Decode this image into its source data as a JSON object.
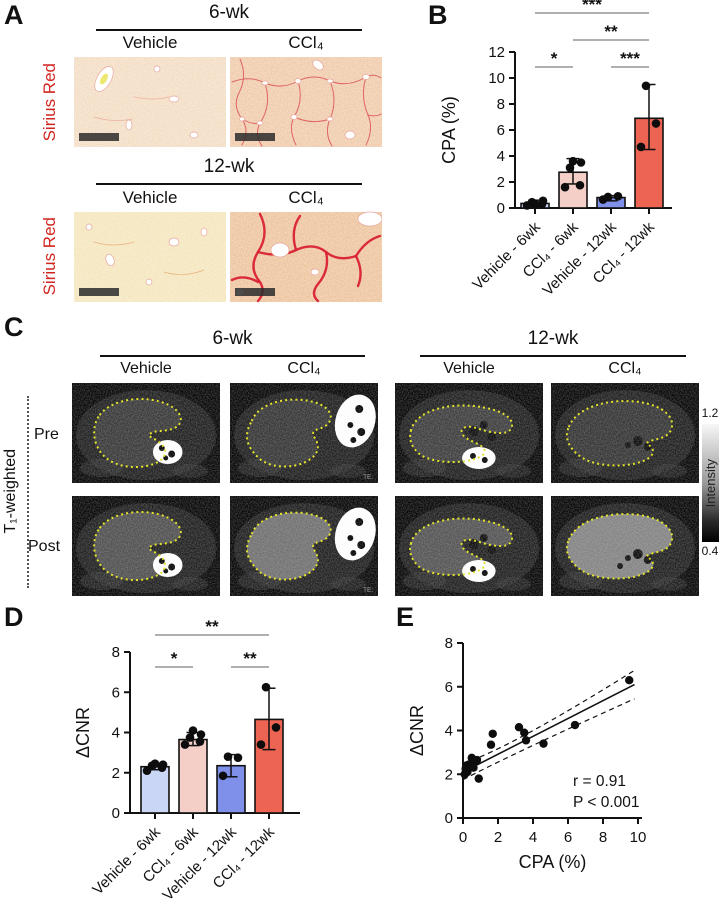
{
  "panels": {
    "a": "A",
    "b": "B",
    "c": "C",
    "d": "D",
    "e": "E"
  },
  "panelA": {
    "stain": "Sirius Red",
    "groups": [
      {
        "time": "6-wk",
        "col1": "Vehicle",
        "col2": "CCl₄"
      },
      {
        "time": "12-wk",
        "col1": "Vehicle",
        "col2": "CCl₄"
      }
    ]
  },
  "panelC": {
    "modality": "T₁-weighted",
    "row1": "Pre",
    "row2": "Post",
    "corner_label": "TE:",
    "groups": [
      {
        "time": "6-wk",
        "col1": "Vehicle",
        "col2": "CCl₄"
      },
      {
        "time": "12-wk",
        "col1": "Vehicle",
        "col2": "CCl₄"
      }
    ],
    "colorbar": {
      "max": "1.2",
      "min": "0.4",
      "label": "Intensity"
    }
  },
  "chart_data": [
    {
      "id": "B",
      "type": "bar",
      "title": "",
      "xlabel": "",
      "ylabel": "CPA (%)",
      "ylim": [
        0,
        12
      ],
      "ytick_step": 2,
      "grid": false,
      "legend": "none",
      "categories": [
        "Vehicle - 6wk",
        "CCl₄ - 6wk",
        "Vehicle - 12wk",
        "CCl₄ - 12wk"
      ],
      "values": [
        0.35,
        2.75,
        0.8,
        6.9
      ],
      "error_low": [
        0.1,
        1.85,
        0.55,
        4.5
      ],
      "error_high": [
        0.6,
        3.8,
        0.95,
        9.5
      ],
      "points": [
        [
          0.2,
          0.3,
          0.45,
          0.55,
          0.3
        ],
        [
          1.6,
          1.75,
          3.1,
          3.5,
          3.6
        ],
        [
          0.65,
          0.9,
          0.85
        ],
        [
          4.7,
          6.5,
          9.4
        ]
      ],
      "bar_colors": [
        "#c9d6f5",
        "#f4cfc7",
        "#7e90e9",
        "#ed6452"
      ],
      "significance": [
        {
          "a": 0,
          "b": 3,
          "label": "***",
          "row": 2
        },
        {
          "a": 1,
          "b": 3,
          "label": "**",
          "row": 1
        },
        {
          "a": 0,
          "b": 1,
          "label": "*",
          "row": 0
        },
        {
          "a": 2,
          "b": 3,
          "label": "***",
          "row": 0
        }
      ]
    },
    {
      "id": "D",
      "type": "bar",
      "title": "",
      "xlabel": "",
      "ylabel": "ΔCNR",
      "ylim": [
        0,
        8
      ],
      "ytick_step": 2,
      "grid": false,
      "legend": "none",
      "categories": [
        "Vehicle - 6wk",
        "CCl₄ - 6wk",
        "Vehicle - 12wk",
        "CCl₄ - 12wk"
      ],
      "values": [
        2.3,
        3.65,
        2.35,
        4.65
      ],
      "error_low": [
        2.15,
        3.35,
        1.8,
        3.15
      ],
      "error_high": [
        2.45,
        4.0,
        2.9,
        6.2
      ],
      "points": [
        [
          2.1,
          2.25,
          2.35,
          2.4,
          2.45
        ],
        [
          3.4,
          3.55,
          3.75,
          3.9,
          4.1
        ],
        [
          1.85,
          2.75,
          2.8
        ],
        [
          3.4,
          4.25,
          6.25
        ]
      ],
      "bar_colors": [
        "#c9d6f5",
        "#f4cfc7",
        "#7e90e9",
        "#ed6452"
      ],
      "significance": [
        {
          "a": 0,
          "b": 3,
          "label": "**",
          "row": 1
        },
        {
          "a": 0,
          "b": 1,
          "label": "*",
          "row": 0
        },
        {
          "a": 2,
          "b": 3,
          "label": "**",
          "row": 0
        }
      ]
    },
    {
      "id": "E",
      "type": "scatter",
      "title": "",
      "xlabel": "CPA (%)",
      "ylabel": "ΔCNR",
      "xlim": [
        0,
        10
      ],
      "ylim": [
        0,
        8
      ],
      "xtick_step": 2,
      "ytick_step": 2,
      "grid": false,
      "points": [
        [
          0.1,
          2.0
        ],
        [
          0.15,
          2.25
        ],
        [
          0.2,
          2.4
        ],
        [
          0.25,
          2.1
        ],
        [
          0.35,
          2.45
        ],
        [
          0.5,
          2.75
        ],
        [
          0.55,
          2.55
        ],
        [
          0.6,
          2.3
        ],
        [
          0.7,
          2.6
        ],
        [
          0.8,
          2.65
        ],
        [
          0.9,
          1.8
        ],
        [
          1.6,
          3.35
        ],
        [
          1.7,
          3.85
        ],
        [
          3.2,
          4.15
        ],
        [
          3.5,
          3.9
        ],
        [
          3.6,
          3.55
        ],
        [
          4.6,
          3.4
        ],
        [
          6.4,
          4.25
        ],
        [
          9.5,
          6.3
        ]
      ],
      "fit_line": {
        "start": [
          0,
          2.1
        ],
        "end": [
          9.8,
          6.1
        ]
      },
      "ci_upper": {
        "start": [
          0,
          2.5
        ],
        "mid": [
          2.6,
          3.15
        ],
        "end": [
          9.8,
          6.75
        ]
      },
      "ci_lower": {
        "start": [
          0,
          1.75
        ],
        "mid": [
          2.6,
          2.85
        ],
        "end": [
          9.8,
          5.45
        ]
      },
      "stats": {
        "r_text": "r = 0.91",
        "p_text": "P < 0.001"
      }
    }
  ]
}
